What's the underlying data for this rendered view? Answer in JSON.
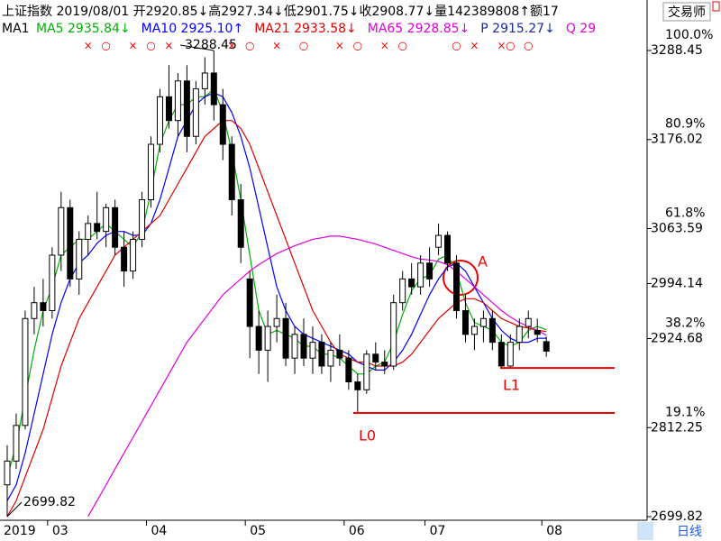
{
  "header": {
    "line1": "上证指数 2019/08/01 开2920.85↓高2927.34↓低2901.75↓收2908.77↓量142389808↑额17",
    "indicator": "MA1",
    "items": [
      {
        "text": "MA5 2935.84↓",
        "color": "#00b000"
      },
      {
        "text": "MA10 2925.10↑",
        "color": "#0000ff"
      },
      {
        "text": "MA21 2933.58↓",
        "color": "#e00000"
      },
      {
        "text": "MA65 2928.85↓",
        "color": "#e000e0"
      },
      {
        "text": "P 2915.27↓",
        "color": "#1a2aa0"
      },
      {
        "text": "Q 29",
        "color": "#e000e0"
      }
    ]
  },
  "top_button": "交易师",
  "period_tab": "日线",
  "chart_data": {
    "type": "candlestick",
    "year_label": "2019",
    "categories": [
      null,
      null,
      null,
      null,
      null,
      "03",
      null,
      null,
      null,
      null,
      null,
      null,
      null,
      null,
      null,
      null,
      "04",
      null,
      null,
      null,
      null,
      null,
      null,
      null,
      null,
      null,
      null,
      "05",
      null,
      null,
      null,
      null,
      null,
      null,
      null,
      null,
      null,
      null,
      "06",
      null,
      null,
      null,
      null,
      null,
      null,
      null,
      null,
      "07",
      null,
      null,
      null,
      null,
      null,
      null,
      null,
      null,
      null,
      null,
      null,
      null,
      "08"
    ],
    "ohlc": [
      [
        2740,
        2790,
        2699.82,
        2770
      ],
      [
        2770,
        2830,
        2760,
        2815
      ],
      [
        2815,
        2960,
        2810,
        2950
      ],
      [
        2950,
        2990,
        2930,
        2970
      ],
      [
        2970,
        3000,
        2940,
        2960
      ],
      [
        2960,
        3040,
        2950,
        3030
      ],
      [
        3030,
        3110,
        3010,
        3090
      ],
      [
        3090,
        3100,
        2990,
        3000
      ],
      [
        3000,
        3060,
        2980,
        3050
      ],
      [
        3050,
        3080,
        3030,
        3070
      ],
      [
        3070,
        3110,
        3050,
        3060
      ],
      [
        3060,
        3095,
        3040,
        3090
      ],
      [
        3090,
        3100,
        3030,
        3040
      ],
      [
        3040,
        3060,
        2990,
        3010
      ],
      [
        3010,
        3060,
        3000,
        3050
      ],
      [
        3050,
        3110,
        3040,
        3100
      ],
      [
        3100,
        3180,
        3090,
        3170
      ],
      [
        3170,
        3240,
        3160,
        3230
      ],
      [
        3230,
        3270,
        3190,
        3200
      ],
      [
        3200,
        3260,
        3180,
        3250
      ],
      [
        3250,
        3270,
        3160,
        3180
      ],
      [
        3180,
        3250,
        3170,
        3240
      ],
      [
        3240,
        3280,
        3220,
        3260
      ],
      [
        3260,
        3288.45,
        3200,
        3220
      ],
      [
        3220,
        3240,
        3150,
        3170
      ],
      [
        3170,
        3180,
        3080,
        3100
      ],
      [
        3100,
        3120,
        3020,
        3040
      ],
      [
        3000,
        3010,
        2900,
        2940
      ],
      [
        2940,
        2960,
        2880,
        2910
      ],
      [
        2910,
        2960,
        2870,
        2940
      ],
      [
        2940,
        2980,
        2920,
        2950
      ],
      [
        2950,
        2970,
        2890,
        2900
      ],
      [
        2900,
        2940,
        2880,
        2930
      ],
      [
        2930,
        2950,
        2890,
        2900
      ],
      [
        2900,
        2940,
        2880,
        2920
      ],
      [
        2920,
        2930,
        2880,
        2890
      ],
      [
        2890,
        2920,
        2870,
        2910
      ],
      [
        2910,
        2930,
        2890,
        2900
      ],
      [
        2900,
        2910,
        2860,
        2870
      ],
      [
        2870,
        2880,
        2831,
        2860
      ],
      [
        2860,
        2910,
        2855,
        2905
      ],
      [
        2905,
        2920,
        2885,
        2895
      ],
      [
        2895,
        2910,
        2880,
        2890
      ],
      [
        2890,
        2980,
        2885,
        2970
      ],
      [
        2970,
        3010,
        2960,
        3000
      ],
      [
        3000,
        3020,
        2980,
        2990
      ],
      [
        2990,
        3030,
        2980,
        3020
      ],
      [
        3020,
        3040,
        2990,
        3000
      ],
      [
        3040,
        3070,
        3030,
        3055
      ],
      [
        3055,
        3060,
        3010,
        3020
      ],
      [
        3020,
        3030,
        2950,
        2960
      ],
      [
        2960,
        2980,
        2920,
        2930
      ],
      [
        2930,
        2950,
        2910,
        2940
      ],
      [
        2940,
        2960,
        2920,
        2950
      ],
      [
        2950,
        2960,
        2910,
        2920
      ],
      [
        2920,
        2930,
        2888,
        2890
      ],
      [
        2890,
        2930,
        2888,
        2920
      ],
      [
        2920,
        2950,
        2910,
        2940
      ],
      [
        2940,
        2960,
        2925,
        2950
      ],
      [
        2935,
        2950,
        2920,
        2930
      ],
      [
        2920.85,
        2927.34,
        2901.75,
        2908.77
      ]
    ],
    "series": [
      {
        "name": "MA5",
        "color": "#00b000",
        "values": [
          2750,
          2790,
          2850,
          2910,
          2960,
          2990,
          3030,
          3040,
          3050,
          3050,
          3060,
          3070,
          3060,
          3050,
          3040,
          3060,
          3110,
          3170,
          3200,
          3220,
          3220,
          3230,
          3230,
          3240,
          3210,
          3160,
          3100,
          3030,
          2960,
          2930,
          2935,
          2930,
          2925,
          2915,
          2915,
          2905,
          2905,
          2900,
          2890,
          2880,
          2880,
          2890,
          2895,
          2920,
          2955,
          2985,
          3000,
          3005,
          3025,
          3030,
          3010,
          2970,
          2945,
          2940,
          2935,
          2920,
          2915,
          2920,
          2935,
          2940,
          2935.84
        ]
      },
      {
        "name": "MA10",
        "color": "#0000ff",
        "values": [
          2720,
          2740,
          2780,
          2830,
          2880,
          2930,
          2970,
          3000,
          3020,
          3030,
          3045,
          3055,
          3060,
          3060,
          3055,
          3055,
          3070,
          3100,
          3140,
          3180,
          3200,
          3220,
          3230,
          3235,
          3230,
          3210,
          3180,
          3140,
          3090,
          3040,
          2990,
          2960,
          2940,
          2930,
          2925,
          2920,
          2915,
          2910,
          2905,
          2895,
          2890,
          2885,
          2885,
          2895,
          2910,
          2930,
          2955,
          2980,
          3000,
          3015,
          3020,
          3010,
          2990,
          2970,
          2950,
          2935,
          2925,
          2920,
          2920,
          2925,
          2925.1
        ]
      },
      {
        "name": "MA21",
        "color": "#e00000",
        "values": [
          2700,
          2720,
          2750,
          2780,
          2810,
          2850,
          2890,
          2920,
          2950,
          2970,
          2990,
          3010,
          3030,
          3040,
          3050,
          3060,
          3070,
          3080,
          3100,
          3120,
          3140,
          3160,
          3180,
          3190,
          3200,
          3200,
          3190,
          3170,
          3140,
          3110,
          3080,
          3050,
          3020,
          2990,
          2960,
          2940,
          2920,
          2905,
          2900,
          2895,
          2895,
          2890,
          2890,
          2890,
          2895,
          2905,
          2920,
          2935,
          2950,
          2960,
          2970,
          2975,
          2975,
          2970,
          2960,
          2950,
          2945,
          2940,
          2938,
          2935,
          2933.58
        ]
      },
      {
        "name": "MA65",
        "color": "#e000e0",
        "values": [
          null,
          null,
          null,
          null,
          null,
          null,
          null,
          null,
          null,
          2700,
          2720,
          2740,
          2760,
          2780,
          2800,
          2820,
          2840,
          2860,
          2880,
          2900,
          2920,
          2935,
          2950,
          2965,
          2980,
          2990,
          3000,
          3010,
          3018,
          3025,
          3032,
          3037,
          3042,
          3046,
          3050,
          3052,
          3054,
          3054,
          3052,
          3050,
          3047,
          3044,
          3040,
          3036,
          3032,
          3028,
          3025,
          3024,
          3022,
          3018,
          3010,
          3000,
          2990,
          2980,
          2970,
          2960,
          2952,
          2945,
          2940,
          2935,
          2928.85
        ]
      }
    ],
    "ylim": [
      2699.82,
      3288.45
    ],
    "yticks": [
      3288.45,
      3176.02,
      3063.59,
      2994.14,
      2924.68,
      2812.25,
      2699.82
    ],
    "fib_ticks": [
      {
        "value": 3288.45,
        "label": "100.0%"
      },
      {
        "value": 3176.02,
        "label": "80.9%"
      },
      {
        "value": 3063.59,
        "label": "61.8%"
      },
      {
        "value": 2924.68,
        "label": "38.2%"
      },
      {
        "value": 2812.25,
        "label": "19.1%"
      }
    ],
    "signals": [
      null,
      null,
      null,
      null,
      null,
      null,
      null,
      null,
      null,
      "×",
      null,
      "○",
      null,
      null,
      "×",
      null,
      "○",
      null,
      "×",
      null,
      null,
      null,
      null,
      null,
      null,
      "×",
      null,
      "○",
      null,
      null,
      "×",
      null,
      null,
      "○",
      null,
      null,
      null,
      "×",
      null,
      "○",
      null,
      null,
      "×",
      null,
      "○",
      null,
      null,
      null,
      null,
      null,
      "○",
      null,
      "×",
      null,
      null,
      "×",
      "○",
      null,
      "○",
      null,
      null
    ],
    "marker": "A",
    "levels": [
      {
        "label": "L0",
        "value": 2830.7
      },
      {
        "label": "L1",
        "value": 2887.6
      }
    ],
    "up_color": "#ffffff",
    "down_color": "#000000"
  }
}
